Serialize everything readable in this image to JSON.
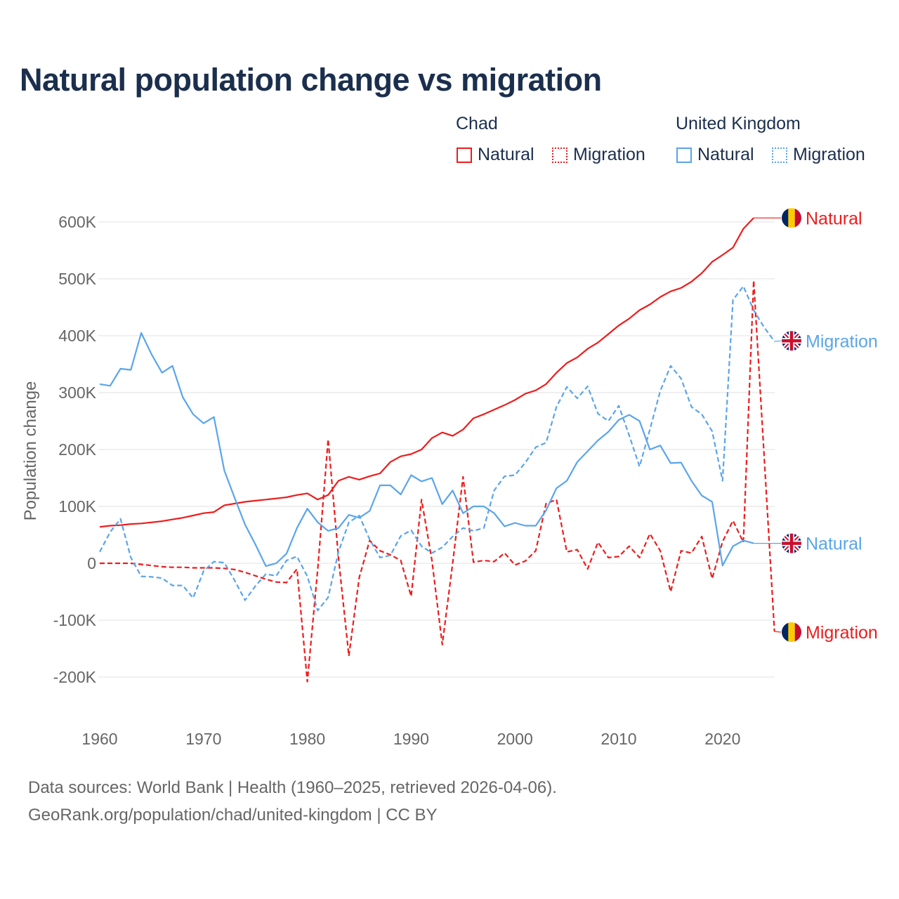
{
  "title": "Natural population change vs migration",
  "legend": {
    "groups": [
      {
        "name": "Chad",
        "items": [
          {
            "label": "Natural",
            "style": "solid",
            "color": "#ee1c1c"
          },
          {
            "label": "Migration",
            "style": "dotted",
            "color": "#ee1c1c"
          }
        ]
      },
      {
        "name": "United Kingdom",
        "items": [
          {
            "label": "Natural",
            "style": "solid",
            "color": "#5aa5ea"
          },
          {
            "label": "Migration",
            "style": "dotted",
            "color": "#5aa5ea"
          }
        ]
      }
    ]
  },
  "footer": {
    "line1": "Data sources: World Bank | Health (1960–2025, retrieved 2026-04-06).",
    "line2": "GeoRank.org/population/chad/united-kingdom | CC BY"
  },
  "chart_data": {
    "type": "line",
    "title": "Natural population change vs migration",
    "xlabel": "",
    "ylabel": "Population change",
    "xlim": [
      1960,
      2025
    ],
    "ylim": [
      -250000,
      650000
    ],
    "x_ticks": [
      1960,
      1970,
      1980,
      1990,
      2000,
      2010,
      2020
    ],
    "x_tick_labels": [
      "1960",
      "1970",
      "1980",
      "1990",
      "2000",
      "2010",
      "2020"
    ],
    "y_ticks": [
      -200000,
      -100000,
      0,
      100000,
      200000,
      300000,
      400000,
      500000,
      600000
    ],
    "y_tick_labels": [
      "-200K",
      "-100K",
      "0",
      "100K",
      "200K",
      "300K",
      "400K",
      "500K",
      "600K"
    ],
    "grid": true,
    "series": [
      {
        "name": "Chad Natural",
        "end_label": "Natural",
        "country": "chad",
        "color": "#ee1c1c",
        "dashed": false,
        "start": 1960,
        "values": [
          64000,
          66000,
          67000,
          69000,
          70000,
          72000,
          74000,
          77000,
          80000,
          84000,
          88000,
          90000,
          102000,
          105000,
          108000,
          110000,
          112000,
          114000,
          116000,
          120000,
          123000,
          112000,
          120000,
          145000,
          152000,
          147000,
          153000,
          158000,
          178000,
          188000,
          192000,
          200000,
          220000,
          230000,
          224000,
          235000,
          255000,
          262000,
          270000,
          278000,
          287000,
          298000,
          304000,
          315000,
          335000,
          352000,
          362000,
          377000,
          388000,
          403000,
          418000,
          430000,
          445000,
          455000,
          468000,
          478000,
          484000,
          495000,
          510000,
          530000,
          542000,
          555000,
          588000,
          607000
        ]
      },
      {
        "name": "Chad Migration",
        "end_label": "Migration",
        "country": "chad",
        "color": "#ee1c1c",
        "dashed": true,
        "start": 1960,
        "values": [
          0,
          0,
          0,
          0,
          -2000,
          -4000,
          -6000,
          -7000,
          -7000,
          -8000,
          -8000,
          -8000,
          -9000,
          -11000,
          -16000,
          -22000,
          -28000,
          -33000,
          -34000,
          -10000,
          -208000,
          -10000,
          218000,
          10000,
          -163000,
          -25000,
          40000,
          22000,
          15000,
          5000,
          -58000,
          112000,
          5000,
          -143000,
          0,
          152000,
          2000,
          5000,
          3000,
          18000,
          -3000,
          4000,
          22000,
          105000,
          112000,
          20000,
          24000,
          -10000,
          37000,
          10000,
          12000,
          30000,
          10000,
          52000,
          22000,
          -50000,
          22000,
          18000,
          47000,
          -27000,
          38000,
          75000,
          37000,
          497000,
          190000,
          -120000
        ]
      },
      {
        "name": "United Kingdom Natural",
        "end_label": "Natural",
        "country": "uk",
        "color": "#5aa5ea",
        "dashed": false,
        "start": 1960,
        "values": [
          315000,
          312000,
          342000,
          340000,
          405000,
          367000,
          335000,
          347000,
          292000,
          262000,
          246000,
          257000,
          163000,
          115000,
          68000,
          33000,
          -5000,
          0,
          17000,
          62000,
          96000,
          72000,
          57000,
          62000,
          85000,
          80000,
          92000,
          137000,
          137000,
          121000,
          155000,
          144000,
          150000,
          104000,
          128000,
          88000,
          100000,
          100000,
          88000,
          65000,
          71000,
          66000,
          66000,
          93000,
          132000,
          145000,
          178000,
          197000,
          216000,
          231000,
          252000,
          261000,
          250000,
          200000,
          207000,
          176000,
          177000,
          145000,
          119000,
          108000,
          -4000,
          30000,
          40000,
          35000
        ]
      },
      {
        "name": "United Kingdom Migration",
        "end_label": "Migration",
        "country": "uk",
        "color": "#5aa5ea",
        "dashed": true,
        "start": 1960,
        "values": [
          20000,
          55000,
          78000,
          10000,
          -23000,
          -24000,
          -26000,
          -39000,
          -39000,
          -61000,
          -14000,
          3000,
          1000,
          -30000,
          -65000,
          -40000,
          -19000,
          -22000,
          5000,
          12000,
          -23000,
          -83000,
          -60000,
          20000,
          72000,
          84000,
          42000,
          10000,
          14000,
          48000,
          58000,
          30000,
          18000,
          28000,
          47000,
          62000,
          57000,
          62000,
          128000,
          153000,
          155000,
          177000,
          204000,
          212000,
          275000,
          310000,
          290000,
          311000,
          263000,
          250000,
          277000,
          225000,
          170000,
          235000,
          303000,
          347000,
          325000,
          275000,
          262000,
          232000,
          145000,
          463000,
          487000,
          445000,
          415000,
          390000
        ]
      }
    ]
  }
}
